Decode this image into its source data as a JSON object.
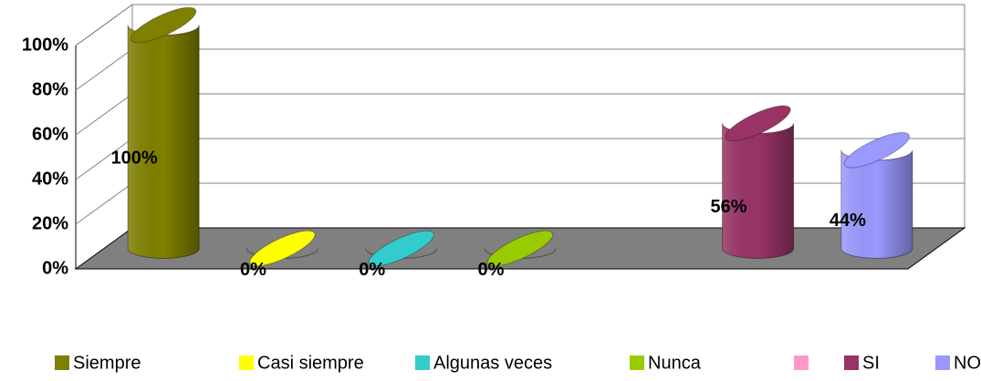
{
  "chart_data": {
    "type": "bar3d",
    "categories": [
      "Siempre",
      "Casi siempre",
      "Algunas veces",
      "Nunca",
      null,
      "SI",
      "NO"
    ],
    "values": [
      100,
      0,
      0,
      0,
      null,
      56,
      44
    ],
    "value_labels": [
      "100%",
      "0%",
      "0%",
      "0%",
      null,
      "56%",
      "44%"
    ],
    "colors": [
      "#808000",
      "#ffff00",
      "#33cccc",
      "#99cc00",
      "#ff99cc",
      "#993366",
      "#9999ff"
    ],
    "ylim": [
      0,
      100
    ],
    "yticks": [
      {
        "value": 0,
        "label": "0%"
      },
      {
        "value": 20,
        "label": "20%"
      },
      {
        "value": 40,
        "label": "40%"
      },
      {
        "value": 60,
        "label": "60%"
      },
      {
        "value": 80,
        "label": "80%"
      },
      {
        "value": 100,
        "label": "100%"
      }
    ],
    "grid": true,
    "legend": "bottom"
  }
}
